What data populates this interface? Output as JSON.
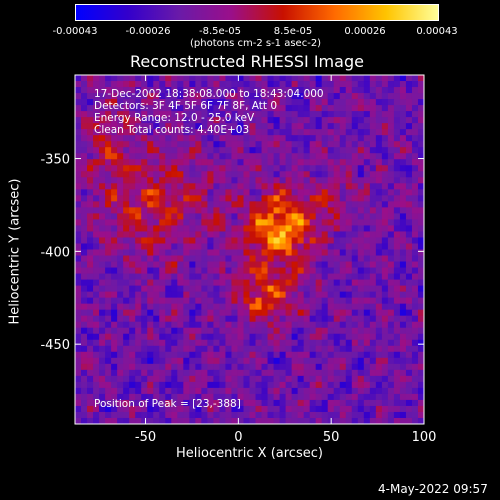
{
  "chart_data": {
    "type": "heatmap",
    "title": "Reconstructed RHESSI Image",
    "xlabel": "Heliocentric X (arcsec)",
    "ylabel": "Heliocentric Y (arcsec)",
    "xlim": [
      -88,
      100
    ],
    "ylim": [
      -493,
      -305
    ],
    "x_ticks": [
      "-50",
      "0",
      "50",
      "100"
    ],
    "x_tick_values": [
      -50,
      0,
      50,
      100
    ],
    "y_ticks": [
      "-350",
      "-400",
      "-450"
    ],
    "y_tick_values": [
      -350,
      -400,
      -450
    ],
    "colorbar": {
      "unit_label": "(photons cm-2 s-1 asec-2)",
      "ticks": [
        "-0.00043",
        "-0.00026",
        "-8.5e-05",
        "8.5e-05",
        "0.00026",
        "0.00043"
      ],
      "tick_values": [
        -0.00043,
        -0.00026,
        -8.5e-05,
        8.5e-05,
        0.00026,
        0.00043
      ],
      "range": [
        -0.00043,
        0.00043
      ],
      "colors": [
        "#0000ff",
        "#3300cc",
        "#6a1aa8",
        "#9a0f8a",
        "#c81000",
        "#ff6a00",
        "#ffc400",
        "#ffff9a"
      ]
    },
    "annotations": [
      "17-Dec-2002 18:38:08.000 to 18:43:04.000",
      "Detectors: 3F 4F 5F 6F 7F 8F, Att 0",
      "Energy Range: 12.0 - 25.0 keV",
      "Clean     Total counts: 4.40E+03"
    ],
    "peak_label": "Position of Peak = [23,-388]",
    "peak_position": [
      23,
      -388
    ]
  },
  "footer": {
    "timestamp": "4-May-2022 09:57"
  }
}
